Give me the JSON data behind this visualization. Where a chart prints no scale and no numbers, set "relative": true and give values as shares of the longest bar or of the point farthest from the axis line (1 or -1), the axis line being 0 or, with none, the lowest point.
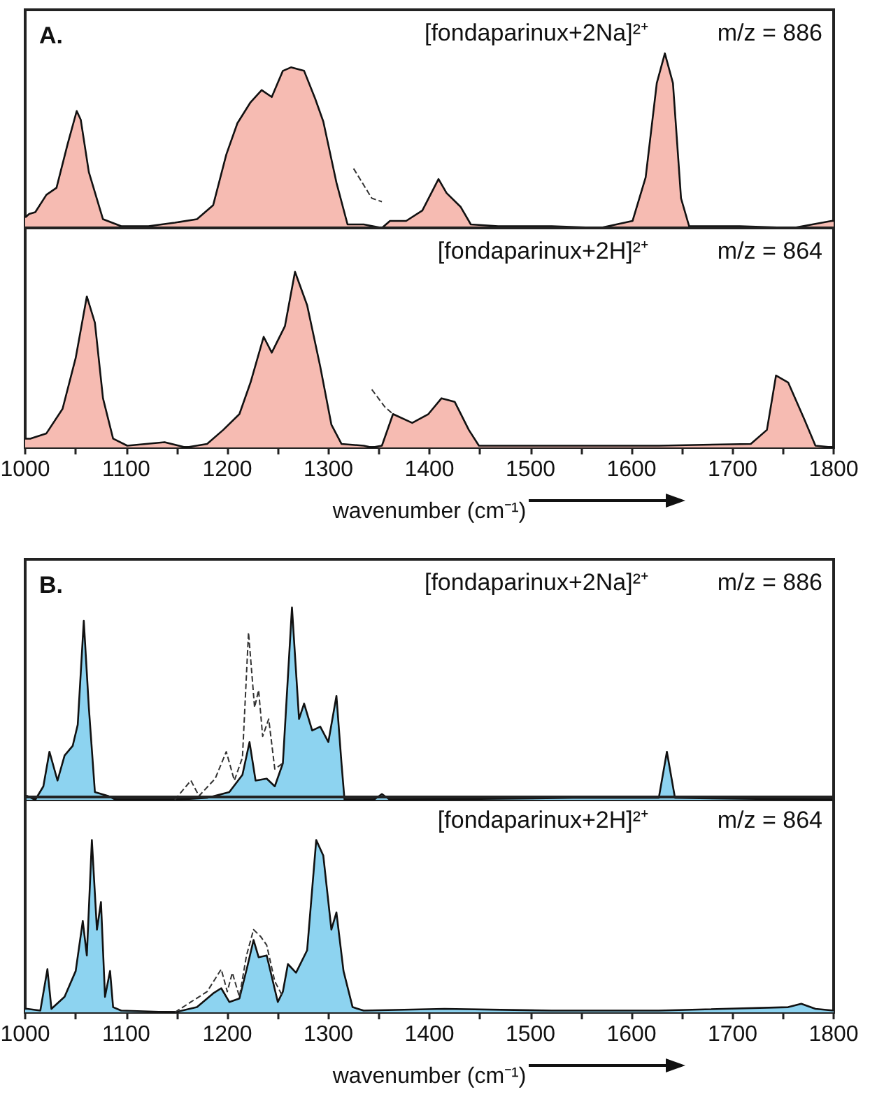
{
  "chart_data": [
    {
      "type": "area",
      "relative": true,
      "xlim": [
        1000,
        1800
      ],
      "tick_labels": false,
      "annotations": [
        "A.",
        "[fondaparinux+2Na]²⁺",
        "m/z = 886"
      ],
      "series": [
        {
          "color": "#f6bbb2",
          "x": [
            1000,
            1004,
            1010,
            1021,
            1031,
            1042,
            1051,
            1055,
            1063,
            1077,
            1095,
            1122,
            1148,
            1170,
            1186,
            1199,
            1210,
            1223,
            1234,
            1244,
            1255,
            1263,
            1276,
            1287,
            1295,
            1308,
            1319,
            1335,
            1353,
            1361,
            1377,
            1393,
            1409,
            1417,
            1431,
            1441,
            1468,
            1521,
            1569,
            1601,
            1614,
            1625,
            1633,
            1641,
            1649,
            1657,
            1707,
            1760,
            1798,
            1800
          ],
          "values": [
            0.06,
            0.08,
            0.09,
            0.19,
            0.23,
            0.48,
            0.67,
            0.62,
            0.32,
            0.05,
            0.01,
            0.01,
            0.03,
            0.05,
            0.13,
            0.42,
            0.6,
            0.72,
            0.79,
            0.75,
            0.9,
            0.92,
            0.9,
            0.74,
            0.61,
            0.26,
            0.02,
            0.02,
            0,
            0.04,
            0.04,
            0.1,
            0.28,
            0.2,
            0.12,
            0.02,
            0.01,
            0.01,
            0,
            0.04,
            0.29,
            0.83,
            1,
            0.83,
            0.17,
            0.01,
            0.01,
            0,
            0.04,
            0.04
          ]
        },
        {
          "type": "line",
          "line_style": "dashed",
          "color": "#333333",
          "x": [
            1325,
            1343,
            1353
          ],
          "values": [
            0.34,
            0.17,
            0.15
          ]
        }
      ]
    },
    {
      "type": "area",
      "relative": true,
      "xlim": [
        1000,
        1800
      ],
      "tick_labels": "x",
      "xticks": [
        1000,
        {
          "value": 1050,
          "label": null
        },
        1100,
        {
          "value": 1150,
          "label": null
        },
        1200,
        {
          "value": 1250,
          "label": null
        },
        1300,
        {
          "value": 1350,
          "label": null
        },
        1400,
        {
          "value": 1450,
          "label": null
        },
        1500,
        {
          "value": 1550,
          "label": null
        },
        1600,
        {
          "value": 1650,
          "label": null
        },
        1700,
        {
          "value": 1750,
          "label": null
        },
        1800
      ],
      "xlabel": "wavenumber (cm⁻¹)",
      "annotations": [
        "[fondaparinux+2H]²⁺",
        "m/z = 864"
      ],
      "series": [
        {
          "color": "#f6bbb2",
          "x": [
            1000,
            1005,
            1021,
            1037,
            1050,
            1061,
            1069,
            1077,
            1087,
            1101,
            1138,
            1159,
            1180,
            1196,
            1212,
            1223,
            1236,
            1244,
            1257,
            1267,
            1279,
            1292,
            1303,
            1313,
            1335,
            1343,
            1353,
            1364,
            1383,
            1399,
            1412,
            1425,
            1439,
            1449,
            1521,
            1627,
            1718,
            1734,
            1743,
            1755,
            1771,
            1782,
            1800
          ],
          "values": [
            0.05,
            0.05,
            0.08,
            0.22,
            0.51,
            0.86,
            0.71,
            0.28,
            0.05,
            0.01,
            0.03,
            0,
            0.02,
            0.1,
            0.19,
            0.37,
            0.63,
            0.54,
            0.69,
            1,
            0.81,
            0.46,
            0.13,
            0.02,
            0.01,
            0,
            0.01,
            0.19,
            0.14,
            0.19,
            0.28,
            0.26,
            0.1,
            0.01,
            0.01,
            0.01,
            0.02,
            0.1,
            0.41,
            0.37,
            0.16,
            0.01,
            0
          ]
        },
        {
          "type": "line",
          "line_style": "dashed",
          "color": "#333333",
          "x": [
            1343,
            1356,
            1364
          ],
          "values": [
            0.33,
            0.23,
            0.19
          ]
        }
      ]
    },
    {
      "type": "area",
      "relative": true,
      "xlim": [
        1000,
        1800
      ],
      "tick_labels": false,
      "annotations": [
        "B.",
        "[fondaparinux+2Na]²⁺",
        "m/z = 886"
      ],
      "series": [
        {
          "color": "#8dd3f0",
          "x": [
            1000,
            1002,
            1010,
            1018,
            1024,
            1032,
            1039,
            1047,
            1052,
            1058,
            1063,
            1069,
            1082,
            1090,
            1148,
            1180,
            1202,
            1215,
            1222,
            1228,
            1239,
            1247,
            1255,
            1264,
            1271,
            1276,
            1284,
            1292,
            1300,
            1308,
            1313,
            1316,
            1345,
            1353,
            1361,
            1542,
            1627,
            1635,
            1643,
            1800
          ],
          "values": [
            0.02,
            0.02,
            0,
            0.07,
            0.25,
            0.1,
            0.23,
            0.28,
            0.39,
            0.93,
            0.48,
            0.04,
            0.02,
            0,
            0,
            0.01,
            0.04,
            0.13,
            0.3,
            0.1,
            0.11,
            0.07,
            0.19,
            1,
            0.42,
            0.5,
            0.36,
            0.38,
            0.3,
            0.54,
            0.19,
            0,
            0,
            0.03,
            0,
            0.01,
            0.01,
            0.25,
            0.01,
            0
          ]
        },
        {
          "type": "line",
          "line_style": "dashed",
          "color": "#333333",
          "x": [
            1148,
            1164,
            1172,
            1188,
            1199,
            1207,
            1215,
            1221,
            1227,
            1231,
            1235,
            1241,
            1247,
            1255
          ],
          "values": [
            0,
            0.1,
            0.02,
            0.11,
            0.25,
            0.1,
            0.22,
            0.87,
            0.48,
            0.57,
            0.33,
            0.42,
            0.16,
            0.19
          ]
        }
      ]
    },
    {
      "type": "area",
      "relative": true,
      "xlim": [
        1000,
        1800
      ],
      "tick_labels": "x",
      "xticks": [
        1000,
        {
          "value": 1050,
          "label": null
        },
        1100,
        {
          "value": 1150,
          "label": null
        },
        1200,
        {
          "value": 1250,
          "label": null
        },
        1300,
        {
          "value": 1350,
          "label": null
        },
        1400,
        {
          "value": 1450,
          "label": null
        },
        1500,
        {
          "value": 1550,
          "label": null
        },
        1600,
        {
          "value": 1650,
          "label": null
        },
        1700,
        {
          "value": 1750,
          "label": null
        },
        1800
      ],
      "xlabel": "wavenumber (cm⁻¹)",
      "annotations": [
        "[fondaparinux+2H]²⁺",
        "m/z = 864"
      ],
      "series": [
        {
          "color": "#8dd3f0",
          "x": [
            1000,
            1002,
            1015,
            1022,
            1026,
            1039,
            1050,
            1057,
            1061,
            1066,
            1071,
            1075,
            1079,
            1084,
            1087,
            1095,
            1148,
            1170,
            1186,
            1194,
            1202,
            1212,
            1220,
            1226,
            1231,
            1239,
            1250,
            1255,
            1260,
            1268,
            1279,
            1288,
            1295,
            1303,
            1308,
            1315,
            1324,
            1335,
            1415,
            1521,
            1627,
            1755,
            1768,
            1782,
            1800
          ],
          "values": [
            0.02,
            0.02,
            0.01,
            0.25,
            0.02,
            0.09,
            0.24,
            0.53,
            0.33,
            1,
            0.48,
            0.64,
            0.09,
            0.24,
            0.03,
            0.01,
            0,
            0.03,
            0.11,
            0.14,
            0.06,
            0.08,
            0.27,
            0.42,
            0.32,
            0.33,
            0.06,
            0.12,
            0.28,
            0.23,
            0.36,
            1,
            0.91,
            0.48,
            0.58,
            0.24,
            0.03,
            0.01,
            0.02,
            0.01,
            0.01,
            0.03,
            0.05,
            0.02,
            0.01
          ]
        },
        {
          "type": "line",
          "line_style": "dashed",
          "color": "#333333",
          "x": [
            1148,
            1164,
            1180,
            1194,
            1200,
            1205,
            1212,
            1219,
            1226,
            1233,
            1239,
            1247,
            1255
          ],
          "values": [
            0,
            0.06,
            0.12,
            0.25,
            0.12,
            0.23,
            0.09,
            0.33,
            0.48,
            0.44,
            0.39,
            0.18,
            0.09
          ]
        }
      ]
    }
  ]
}
